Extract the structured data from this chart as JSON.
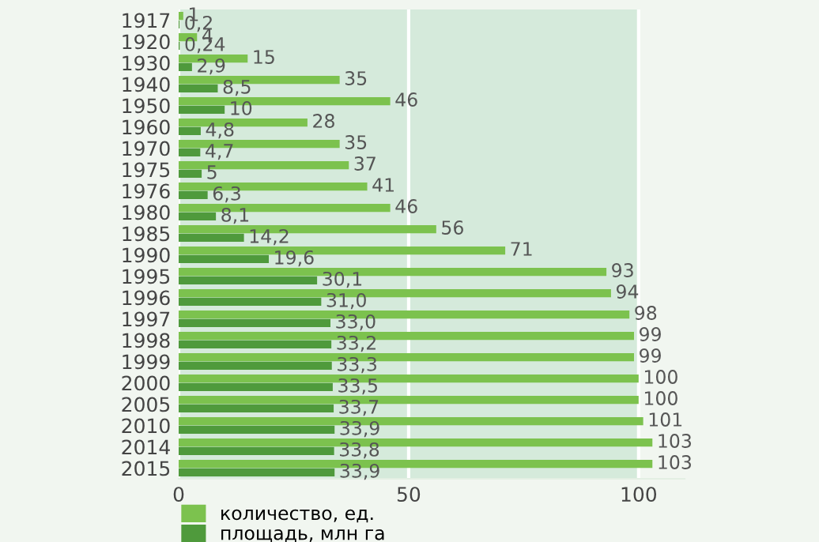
{
  "chart_data": {
    "type": "bar",
    "orientation": "horizontal",
    "categories": [
      "1917",
      "1920",
      "1930",
      "1940",
      "1950",
      "1960",
      "1970",
      "1975",
      "1976",
      "1980",
      "1985",
      "1990",
      "1995",
      "1996",
      "1997",
      "1998",
      "1999",
      "2000",
      "2005",
      "2010",
      "2014",
      "2015"
    ],
    "series": [
      {
        "name": "количество, ед.",
        "color": "#7cc24e",
        "values": [
          1,
          4,
          15,
          35,
          46,
          28,
          35,
          37,
          41,
          46,
          56,
          71,
          93,
          94,
          98,
          99,
          99,
          100,
          100,
          101,
          103,
          103
        ],
        "value_labels": [
          "1",
          "4",
          "15",
          "35",
          "46",
          "28",
          "35",
          "37",
          "41",
          "46",
          "56",
          "71",
          "93",
          "94",
          "98",
          "99",
          "99",
          "100",
          "100",
          "101",
          "103",
          "103"
        ]
      },
      {
        "name": "площадь, млн га",
        "color": "#4f9a3c",
        "values": [
          0.2,
          0.24,
          2.9,
          8.5,
          10,
          4.8,
          4.7,
          5,
          6.3,
          8.1,
          14.2,
          19.6,
          30.1,
          31.0,
          33.0,
          33.2,
          33.3,
          33.5,
          33.7,
          33.9,
          33.8,
          33.9
        ],
        "value_labels": [
          "0,2",
          "0,24",
          "2,9",
          "8,5",
          "10",
          "4,8",
          "4,7",
          "5",
          "6,3",
          "8,1",
          "14,2",
          "19,6",
          "30,1",
          "31,0",
          "33,0",
          "33,2",
          "33,3",
          "33,5",
          "33,7",
          "33,9",
          "33,8",
          "33,9"
        ]
      }
    ],
    "xlim": [
      0,
      110
    ],
    "xticks": [
      0,
      50,
      100
    ],
    "grid": "x",
    "bands": [
      {
        "axis": "x",
        "from": 0,
        "to": 100,
        "color": "#d5eadb"
      }
    ],
    "legend": "bottom"
  }
}
